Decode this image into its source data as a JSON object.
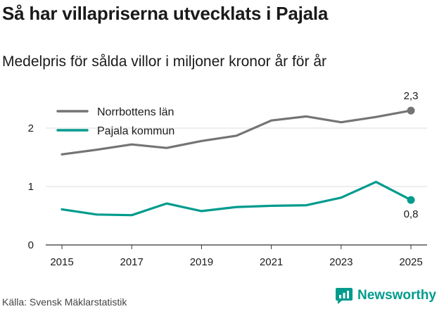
{
  "title": "Så har villapriserna utvecklats i Pajala",
  "subtitle": "Medelpris för sålda villor i miljoner kronor år för år",
  "source": "Källa: Svensk Mäklarstatistik",
  "brand": {
    "name": "Newsworthy",
    "icon": "newsworthy-logo-icon",
    "color": "#009b8d"
  },
  "chart_data": {
    "type": "line",
    "title": "Så har villapriserna utvecklats i Pajala",
    "subtitle": "Medelpris för sålda villor i miljoner kronor år för år",
    "xlabel": "",
    "ylabel": "",
    "x": [
      2015,
      2016,
      2017,
      2018,
      2019,
      2020,
      2021,
      2022,
      2023,
      2024,
      2025
    ],
    "xticks": [
      "2015",
      "2017",
      "2019",
      "2021",
      "2023",
      "2025"
    ],
    "yticks": [
      "0",
      "1",
      "2"
    ],
    "ylim": [
      0,
      2.4
    ],
    "grid": "horizontal",
    "legend_position": "top-left",
    "series": [
      {
        "name": "Norrbottens län",
        "color": "#767376",
        "values": [
          1.55,
          1.63,
          1.72,
          1.66,
          1.78,
          1.87,
          2.13,
          2.2,
          2.1,
          2.19,
          2.3
        ],
        "end_label": "2,3"
      },
      {
        "name": "Pajala kommun",
        "color": "#009b8d",
        "values": [
          0.61,
          0.52,
          0.51,
          0.71,
          0.58,
          0.65,
          0.67,
          0.68,
          0.81,
          1.08,
          0.77
        ],
        "end_label": "0,8"
      }
    ]
  }
}
